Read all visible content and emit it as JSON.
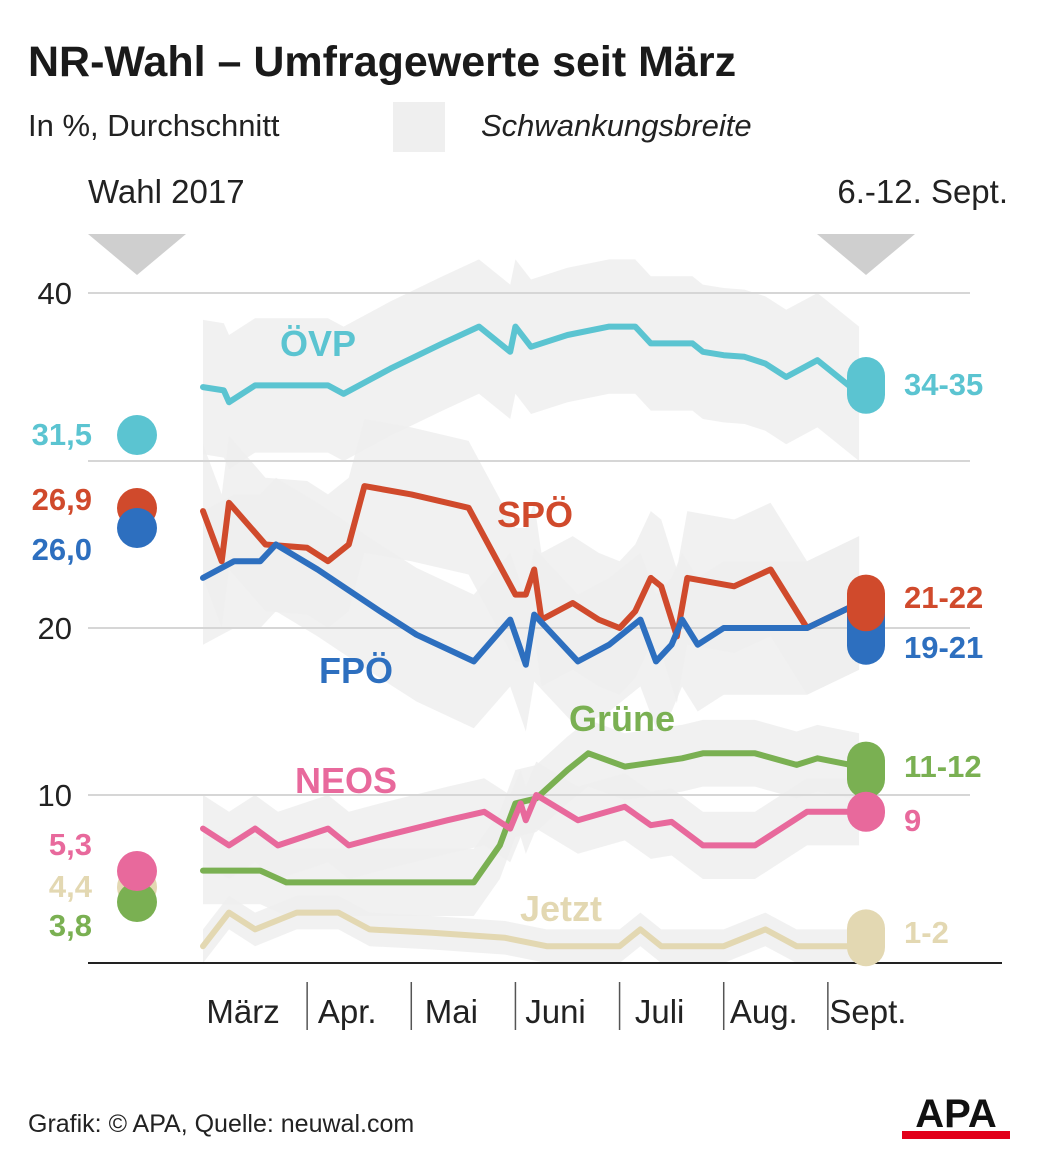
{
  "header": {
    "title": "NR-Wahl – Umfragewerte seit März",
    "subtitle": "In %, Durchschnitt",
    "legend_band_label": "Schwankungsbreite",
    "marker_left": "Wahl 2017",
    "marker_right": "6.-12. Sept."
  },
  "footer": {
    "source": "Grafik: © APA, Quelle: neuwal.com",
    "logo_text": "APA"
  },
  "chart_data": {
    "type": "line",
    "title": "NR-Wahl – Umfragewerte seit März",
    "subtitle": "In %, Durchschnitt",
    "ylim": [
      0,
      40
    ],
    "yticks": [
      10,
      20,
      40
    ],
    "grid": true,
    "months": [
      "März",
      "Apr.",
      "Mai",
      "Juni",
      "Juli",
      "Aug.",
      "Sept."
    ],
    "x_domain": [
      0,
      7
    ],
    "band_label": "Schwankungsbreite",
    "series": [
      {
        "name": "ÖVP",
        "color": "#5bc4d1",
        "election_2017": 31.5,
        "election_label": "31,5",
        "final_range": [
          34,
          35
        ],
        "final_label": "34-35",
        "band": 4,
        "points": [
          [
            0.0,
            34.4
          ],
          [
            0.2,
            34.2
          ],
          [
            0.25,
            33.5
          ],
          [
            0.5,
            34.5
          ],
          [
            1.2,
            34.5
          ],
          [
            1.35,
            34.0
          ],
          [
            1.8,
            35.5
          ],
          [
            2.3,
            37.0
          ],
          [
            2.65,
            38.0
          ],
          [
            2.95,
            36.5
          ],
          [
            3.0,
            38.0
          ],
          [
            3.15,
            36.8
          ],
          [
            3.5,
            37.5
          ],
          [
            3.9,
            38.0
          ],
          [
            4.15,
            38.0
          ],
          [
            4.3,
            37.0
          ],
          [
            4.7,
            37.0
          ],
          [
            4.8,
            36.5
          ],
          [
            5.0,
            36.3
          ],
          [
            5.2,
            36.2
          ],
          [
            5.4,
            35.8
          ],
          [
            5.6,
            35.0
          ],
          [
            5.9,
            36.0
          ],
          [
            6.3,
            34.0
          ]
        ]
      },
      {
        "name": "SPÖ",
        "color": "#d04a2c",
        "election_2017": 26.9,
        "election_label": "26,9",
        "final_range": [
          21,
          22
        ],
        "final_label": "21-22",
        "band": 4,
        "points": [
          [
            0.0,
            27.0
          ],
          [
            0.18,
            24.0
          ],
          [
            0.25,
            27.5
          ],
          [
            0.6,
            25.0
          ],
          [
            1.0,
            24.8
          ],
          [
            1.2,
            24.0
          ],
          [
            1.4,
            25.0
          ],
          [
            1.55,
            28.5
          ],
          [
            2.0,
            28.0
          ],
          [
            2.55,
            27.2
          ],
          [
            3.0,
            22.0
          ],
          [
            3.1,
            22.0
          ],
          [
            3.18,
            23.5
          ],
          [
            3.25,
            20.5
          ],
          [
            3.55,
            21.5
          ],
          [
            3.8,
            20.5
          ],
          [
            4.0,
            20.0
          ],
          [
            4.15,
            21.0
          ],
          [
            4.3,
            23.0
          ],
          [
            4.4,
            22.5
          ],
          [
            4.55,
            19.5
          ],
          [
            4.65,
            23.0
          ],
          [
            5.1,
            22.5
          ],
          [
            5.45,
            23.5
          ],
          [
            5.8,
            20.0
          ],
          [
            6.3,
            21.5
          ]
        ]
      },
      {
        "name": "FPÖ",
        "color": "#2d6fbf",
        "election_2017": 26.0,
        "election_label": "26,0",
        "final_range": [
          19,
          21
        ],
        "final_label": "19-21",
        "band": 4,
        "points": [
          [
            0.0,
            23.0
          ],
          [
            0.3,
            24.0
          ],
          [
            0.55,
            24.0
          ],
          [
            0.7,
            25.0
          ],
          [
            1.1,
            23.5
          ],
          [
            1.7,
            21.0
          ],
          [
            2.05,
            19.6
          ],
          [
            2.6,
            18.0
          ],
          [
            2.95,
            20.5
          ],
          [
            3.1,
            17.8
          ],
          [
            3.18,
            20.8
          ],
          [
            3.6,
            18.0
          ],
          [
            3.9,
            19.0
          ],
          [
            4.2,
            20.5
          ],
          [
            4.35,
            18.0
          ],
          [
            4.5,
            19.0
          ],
          [
            4.6,
            20.5
          ],
          [
            4.75,
            19.0
          ],
          [
            5.0,
            20.0
          ],
          [
            5.5,
            20.0
          ],
          [
            5.8,
            20.0
          ],
          [
            6.3,
            21.5
          ]
        ]
      },
      {
        "name": "Grüne",
        "color": "#7ab052",
        "election_2017": 3.8,
        "election_label": "3,8",
        "final_range": [
          11,
          12
        ],
        "final_label": "11-12",
        "band": 2,
        "points": [
          [
            0.0,
            5.5
          ],
          [
            0.55,
            5.5
          ],
          [
            0.8,
            4.8
          ],
          [
            2.6,
            4.8
          ],
          [
            2.85,
            7.0
          ],
          [
            3.0,
            9.5
          ],
          [
            3.2,
            9.8
          ],
          [
            3.5,
            11.5
          ],
          [
            3.7,
            12.5
          ],
          [
            4.05,
            11.7
          ],
          [
            4.6,
            12.2
          ],
          [
            4.8,
            12.5
          ],
          [
            5.3,
            12.5
          ],
          [
            5.7,
            11.8
          ],
          [
            5.9,
            12.2
          ],
          [
            6.3,
            11.7
          ]
        ]
      },
      {
        "name": "NEOS",
        "color": "#e8699c",
        "election_2017": 5.3,
        "election_label": "5,3",
        "final_range": [
          9,
          9
        ],
        "final_label": "9",
        "band": 2,
        "points": [
          [
            0.0,
            8.0
          ],
          [
            0.25,
            7.0
          ],
          [
            0.5,
            8.0
          ],
          [
            0.72,
            7.0
          ],
          [
            1.2,
            8.0
          ],
          [
            1.4,
            7.0
          ],
          [
            1.7,
            7.5
          ],
          [
            2.35,
            8.5
          ],
          [
            2.7,
            9.0
          ],
          [
            2.95,
            8.0
          ],
          [
            3.05,
            9.5
          ],
          [
            3.1,
            8.5
          ],
          [
            3.2,
            10.0
          ],
          [
            3.6,
            8.5
          ],
          [
            4.05,
            9.3
          ],
          [
            4.3,
            8.2
          ],
          [
            4.5,
            8.4
          ],
          [
            4.8,
            7.0
          ],
          [
            5.3,
            7.0
          ],
          [
            5.8,
            9.0
          ],
          [
            6.3,
            9.0
          ]
        ]
      },
      {
        "name": "Jetzt",
        "color": "#e3d8b2",
        "election_2017": 4.4,
        "election_label": "4,4",
        "final_range": [
          1,
          2
        ],
        "final_label": "1-2",
        "band": 1,
        "points": [
          [
            0.0,
            1.0
          ],
          [
            0.25,
            3.0
          ],
          [
            0.5,
            2.0
          ],
          [
            0.9,
            3.0
          ],
          [
            1.3,
            3.0
          ],
          [
            1.6,
            2.0
          ],
          [
            2.2,
            1.8
          ],
          [
            2.9,
            1.5
          ],
          [
            3.3,
            1.0
          ],
          [
            4.0,
            1.0
          ],
          [
            4.2,
            2.0
          ],
          [
            4.4,
            1.0
          ],
          [
            5.0,
            1.0
          ],
          [
            5.4,
            2.0
          ],
          [
            5.7,
            1.0
          ],
          [
            6.3,
            1.0
          ]
        ]
      }
    ]
  }
}
